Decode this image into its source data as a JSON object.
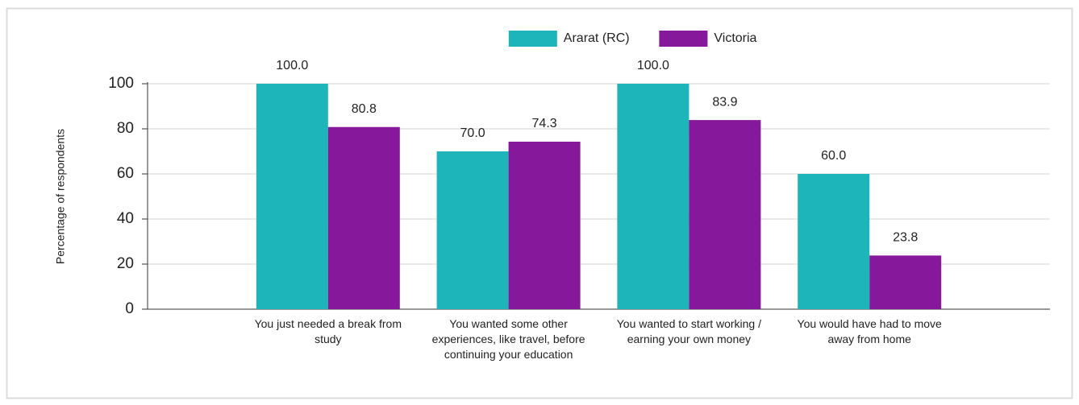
{
  "chart_data": {
    "type": "bar",
    "y_label": "Percentage of respondents",
    "categories": [
      "You just needed a break from study",
      "You wanted some other experiences, like travel, before continuing your education",
      "You wanted to start working / earning your own money",
      "You would have had to move away from home"
    ],
    "series": [
      {
        "name": "Ararat (RC)",
        "color": "#1db5b9",
        "values": [
          100,
          70,
          100,
          60
        ],
        "value_labels": [
          "100.0",
          "70.0",
          "100.0",
          "60.0"
        ]
      },
      {
        "name": "Victoria",
        "color": "#86199b",
        "values": [
          80.8,
          74.3,
          83.9,
          23.8
        ],
        "value_labels": [
          "80.8",
          "74.3",
          "83.9",
          "23.8"
        ]
      }
    ],
    "ylim": [
      0,
      100
    ],
    "yticks": [
      0,
      20,
      40,
      60,
      80,
      100
    ],
    "grid": true,
    "legend": "top"
  }
}
